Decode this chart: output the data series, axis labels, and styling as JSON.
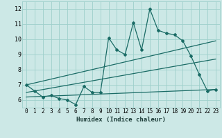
{
  "xlabel": "Humidex (Indice chaleur)",
  "bg_color": "#cce8e6",
  "grid_color": "#9ecfcb",
  "line_color": "#1a6b65",
  "xlim": [
    -0.5,
    23.5
  ],
  "ylim": [
    5.5,
    12.5
  ],
  "yticks": [
    6,
    7,
    8,
    9,
    10,
    11,
    12
  ],
  "xticks": [
    0,
    1,
    2,
    3,
    4,
    5,
    6,
    7,
    8,
    9,
    10,
    11,
    12,
    13,
    14,
    15,
    16,
    17,
    18,
    19,
    20,
    21,
    22,
    23
  ],
  "series1_x": [
    0,
    1,
    2,
    3,
    4,
    5,
    6,
    7,
    8,
    9,
    10,
    11,
    12,
    13,
    14,
    15,
    16,
    17,
    18,
    19,
    20,
    21,
    22,
    23
  ],
  "series1_y": [
    7.0,
    6.6,
    6.2,
    6.3,
    6.1,
    6.0,
    5.7,
    6.9,
    6.5,
    6.5,
    10.1,
    9.3,
    9.0,
    11.1,
    9.3,
    12.0,
    10.6,
    10.4,
    10.3,
    9.9,
    8.9,
    7.7,
    6.6,
    6.7
  ],
  "series2_x": [
    0,
    23
  ],
  "series2_y": [
    7.0,
    9.9
  ],
  "series3_x": [
    0,
    23
  ],
  "series3_y": [
    6.5,
    8.7
  ],
  "series4_x": [
    0,
    23
  ],
  "series4_y": [
    6.2,
    6.7
  ],
  "xlabel_fontsize": 6.5,
  "tick_fontsize": 5.5,
  "ytick_fontsize": 6.0
}
